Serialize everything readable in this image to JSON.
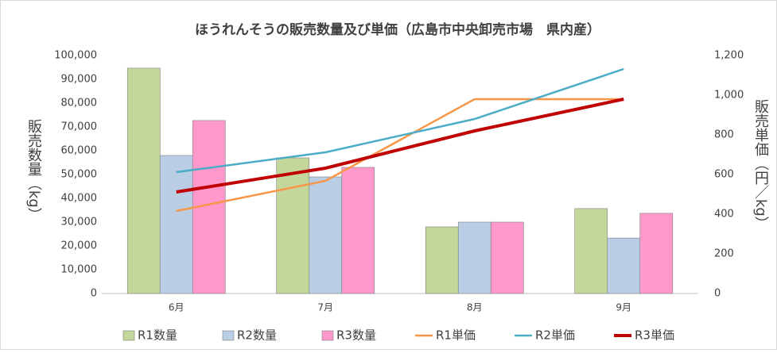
{
  "chart_data": {
    "type": "bar-line",
    "title": "ほうれんそうの販売数量及び単価（広島市中央卸売市場　県内産）",
    "y_label": "販売数量（kg）",
    "y2_label": "販売単価（円／kg）",
    "categories": [
      "6月",
      "7月",
      "8月",
      "9月"
    ],
    "series": [
      {
        "name": "R1数量",
        "type": "bar",
        "color": "#c4d79b",
        "values": [
          94700,
          57000,
          28000,
          35700
        ]
      },
      {
        "name": "R2数量",
        "type": "bar",
        "color": "#b9cde5",
        "values": [
          58000,
          49000,
          30000,
          23300
        ]
      },
      {
        "name": "R3数量",
        "type": "bar",
        "color": "#ff99cc",
        "values": [
          72700,
          53000,
          30000,
          33700
        ]
      },
      {
        "name": "R1単価",
        "type": "line",
        "axis": "y2",
        "color": "#f79646",
        "values": [
          416,
          568,
          980,
          980
        ]
      },
      {
        "name": "R2単価",
        "type": "line",
        "axis": "y2",
        "color": "#4bacc6",
        "values": [
          612,
          712,
          880,
          1132
        ]
      },
      {
        "name": "R3単価",
        "type": "line",
        "axis": "y2",
        "color": "#c00000",
        "values": [
          512,
          632,
          820,
          980
        ]
      }
    ],
    "ylim": [
      0,
      100000
    ],
    "yticks": [
      0,
      {
        "value": 10000,
        "label": "10,000"
      },
      {
        "value": 20000,
        "label": "20,000"
      },
      {
        "value": 30000,
        "label": "30,000"
      },
      {
        "value": 40000,
        "label": "40,000"
      },
      {
        "value": 50000,
        "label": "50,000"
      },
      {
        "value": 60000,
        "label": "60,000"
      },
      {
        "value": 70000,
        "label": "70,000"
      },
      {
        "value": 80000,
        "label": "80,000"
      },
      {
        "value": 90000,
        "label": "90,000"
      },
      {
        "value": 100000,
        "label": "100,000"
      }
    ],
    "y2lim": [
      0,
      1200
    ],
    "y2ticks": [
      0,
      200,
      400,
      600,
      800,
      {
        "value": 1000,
        "label": "1,000"
      },
      {
        "value": 1200,
        "label": "1,200"
      }
    ],
    "legend": "bottom"
  }
}
